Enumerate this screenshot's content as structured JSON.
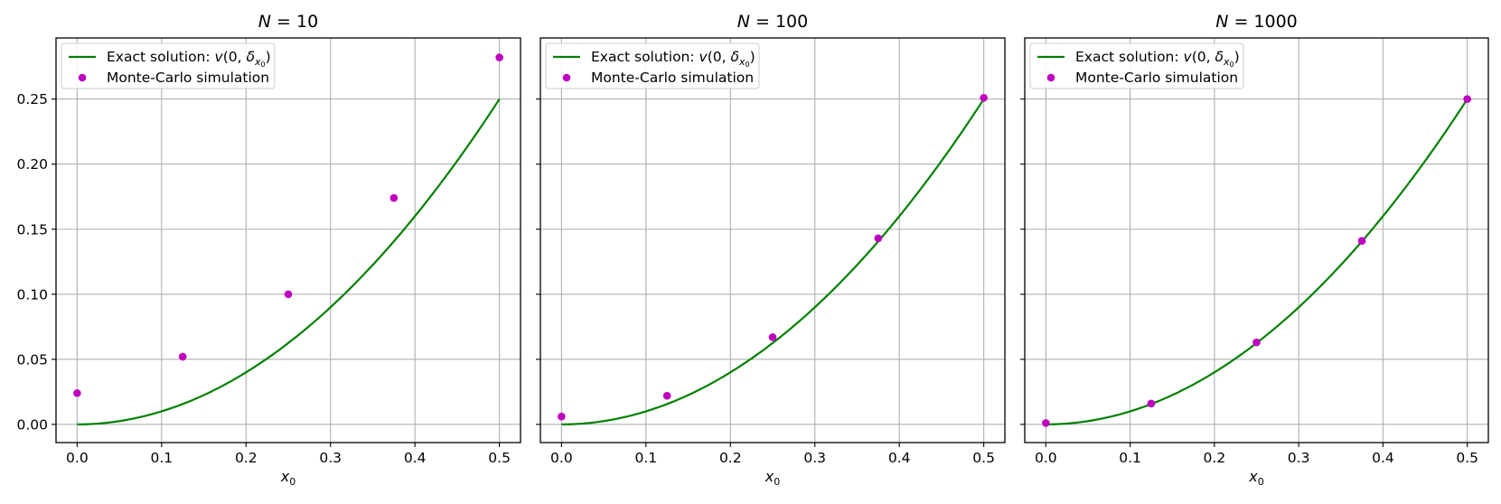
{
  "colors": {
    "exact": "#008000",
    "mc": "#bf00bf",
    "grid": "#b0b0b0"
  },
  "chart_data": [
    {
      "type": "line",
      "title": "N = 10",
      "title_parts": {
        "base": "N",
        "rest": " = 10"
      },
      "xlabel": "x0",
      "xlabel_parts": {
        "base": "x",
        "sub": "0"
      },
      "xlim": [
        -0.025,
        0.525
      ],
      "ylim": [
        -0.014,
        0.297
      ],
      "xticks": [
        0.0,
        0.1,
        0.2,
        0.3,
        0.4,
        0.5
      ],
      "xtick_labels": [
        "0.0",
        "0.1",
        "0.2",
        "0.3",
        "0.4",
        "0.5"
      ],
      "yticks": [
        0.0,
        0.05,
        0.1,
        0.15,
        0.2,
        0.25
      ],
      "ytick_labels": [
        "0.00",
        "0.05",
        "0.10",
        "0.15",
        "0.20",
        "0.25"
      ],
      "show_ytick_labels": true,
      "grid": true,
      "legend": "top-left",
      "series": [
        {
          "name": "Exact solution: v(0, δx0)",
          "kind": "line",
          "function": "x^2",
          "x_range": [
            0,
            0.5
          ]
        },
        {
          "name": "Monte-Carlo simulation",
          "kind": "scatter",
          "x": [
            0.0,
            0.125,
            0.25,
            0.375,
            0.5
          ],
          "y": [
            0.024,
            0.052,
            0.1,
            0.174,
            0.282
          ]
        }
      ]
    },
    {
      "type": "line",
      "title": "N = 100",
      "title_parts": {
        "base": "N",
        "rest": " = 100"
      },
      "xlabel": "x0",
      "xlabel_parts": {
        "base": "x",
        "sub": "0"
      },
      "xlim": [
        -0.025,
        0.525
      ],
      "ylim": [
        -0.014,
        0.297
      ],
      "xticks": [
        0.0,
        0.1,
        0.2,
        0.3,
        0.4,
        0.5
      ],
      "xtick_labels": [
        "0.0",
        "0.1",
        "0.2",
        "0.3",
        "0.4",
        "0.5"
      ],
      "yticks": [
        0.0,
        0.05,
        0.1,
        0.15,
        0.2,
        0.25
      ],
      "ytick_labels": [
        "0.00",
        "0.05",
        "0.10",
        "0.15",
        "0.20",
        "0.25"
      ],
      "show_ytick_labels": false,
      "grid": true,
      "legend": "top-left",
      "series": [
        {
          "name": "Exact solution: v(0, δx0)",
          "kind": "line",
          "function": "x^2",
          "x_range": [
            0,
            0.5
          ]
        },
        {
          "name": "Monte-Carlo simulation",
          "kind": "scatter",
          "x": [
            0.0,
            0.125,
            0.25,
            0.375,
            0.5
          ],
          "y": [
            0.006,
            0.022,
            0.067,
            0.143,
            0.251
          ]
        }
      ]
    },
    {
      "type": "line",
      "title": "N = 1000",
      "title_parts": {
        "base": "N",
        "rest": " = 1000"
      },
      "xlabel": "x0",
      "xlabel_parts": {
        "base": "x",
        "sub": "0"
      },
      "xlim": [
        -0.025,
        0.525
      ],
      "ylim": [
        -0.014,
        0.297
      ],
      "xticks": [
        0.0,
        0.1,
        0.2,
        0.3,
        0.4,
        0.5
      ],
      "xtick_labels": [
        "0.0",
        "0.1",
        "0.2",
        "0.3",
        "0.4",
        "0.5"
      ],
      "yticks": [
        0.0,
        0.05,
        0.1,
        0.15,
        0.2,
        0.25
      ],
      "ytick_labels": [
        "0.00",
        "0.05",
        "0.10",
        "0.15",
        "0.20",
        "0.25"
      ],
      "show_ytick_labels": false,
      "grid": true,
      "legend": "top-left",
      "series": [
        {
          "name": "Exact solution: v(0, δx0)",
          "kind": "line",
          "function": "x^2",
          "x_range": [
            0,
            0.5
          ]
        },
        {
          "name": "Monte-Carlo simulation",
          "kind": "scatter",
          "x": [
            0.0,
            0.125,
            0.25,
            0.375,
            0.5
          ],
          "y": [
            0.001,
            0.016,
            0.063,
            0.141,
            0.25
          ]
        }
      ]
    }
  ],
  "legend": {
    "exact_label": {
      "prefix": "Exact solution: ",
      "func": "v",
      "open": "(0, ",
      "delta": "δ",
      "sub": "x",
      "subsub": "0",
      "close": ")"
    },
    "mc_label": "Monte-Carlo simulation"
  }
}
